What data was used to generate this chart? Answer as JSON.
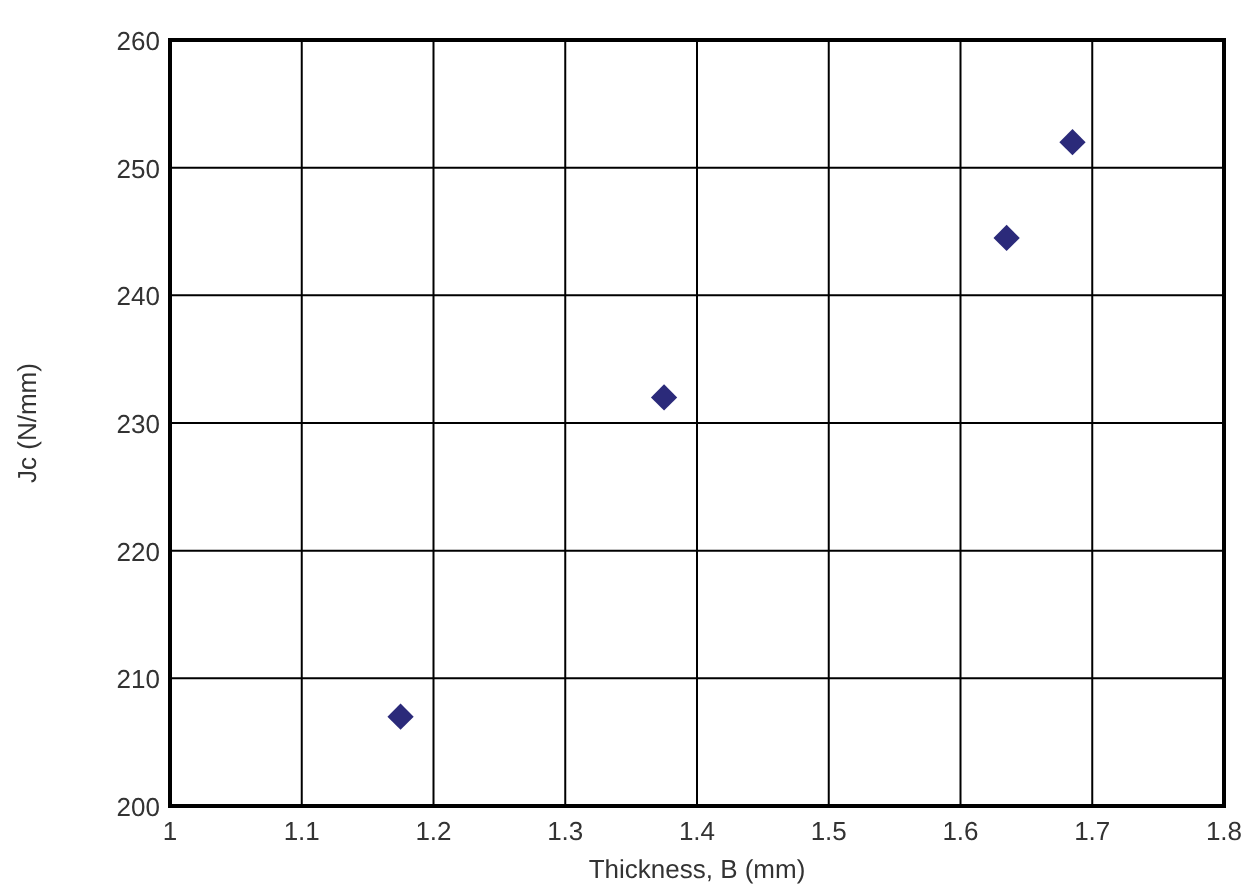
{
  "chart_data": {
    "type": "scatter",
    "xlabel": "Thickness, B (mm)",
    "ylabel": "Jc (N/mm)",
    "x": [
      1.175,
      1.375,
      1.635,
      1.685
    ],
    "series": [
      {
        "color": "#2b2a7a",
        "values": [
          207,
          232,
          244.5,
          252
        ]
      }
    ],
    "xlim": [
      1,
      1.8
    ],
    "xticks": [
      1,
      1.1,
      1.2,
      1.3,
      1.4,
      1.5,
      1.6,
      1.7,
      1.8
    ],
    "ylim": [
      200,
      260
    ],
    "yticks": [
      200,
      210,
      220,
      230,
      240,
      250,
      260
    ],
    "grid": true,
    "marker": "diamond"
  }
}
